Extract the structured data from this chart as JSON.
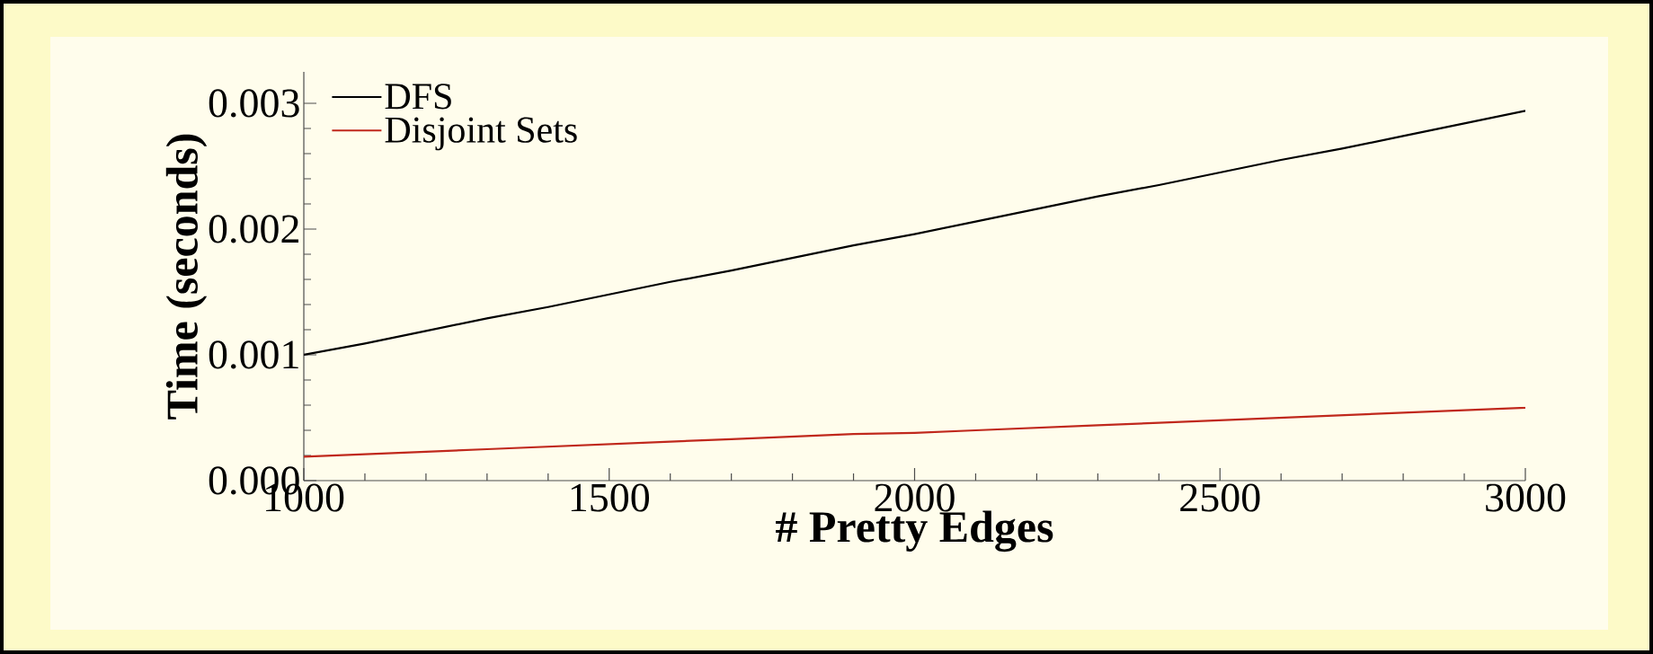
{
  "chart_data": {
    "type": "line",
    "xlabel": "# Pretty Edges",
    "ylabel": "Time (seconds)",
    "x": [
      1000,
      1100,
      1200,
      1300,
      1400,
      1500,
      1600,
      1700,
      1800,
      1900,
      2000,
      2100,
      2200,
      2300,
      2400,
      2500,
      2600,
      2700,
      2800,
      2900,
      3000
    ],
    "series": [
      {
        "name": "DFS",
        "color": "#000000",
        "values": [
          0.001,
          0.00109,
          0.00119,
          0.00129,
          0.00138,
          0.00148,
          0.00158,
          0.00167,
          0.00177,
          0.00187,
          0.00196,
          0.00206,
          0.00216,
          0.00226,
          0.00235,
          0.00245,
          0.00255,
          0.00264,
          0.00274,
          0.00284,
          0.00294
        ]
      },
      {
        "name": "Disjoint Sets",
        "color": "#c0281c",
        "values": [
          0.00019,
          0.00021,
          0.00023,
          0.00025,
          0.00027,
          0.00029,
          0.00031,
          0.00033,
          0.00035,
          0.00037,
          0.00038,
          0.0004,
          0.00042,
          0.00044,
          0.00046,
          0.00048,
          0.0005,
          0.00052,
          0.00054,
          0.00056,
          0.00058
        ]
      }
    ],
    "xlim": [
      1000,
      3000
    ],
    "xticks": [
      1000,
      1500,
      2000,
      2500,
      3000
    ],
    "ylim": [
      0,
      0.00325
    ],
    "yticks": [
      {
        "value": 0,
        "label": "0.000"
      },
      {
        "value": 0.001,
        "label": "0.001"
      },
      {
        "value": 0.002,
        "label": "0.002"
      },
      {
        "value": 0.003,
        "label": "0.003"
      }
    ],
    "legend": "top left",
    "marker": "none",
    "line_style": "solid",
    "grid": false
  }
}
